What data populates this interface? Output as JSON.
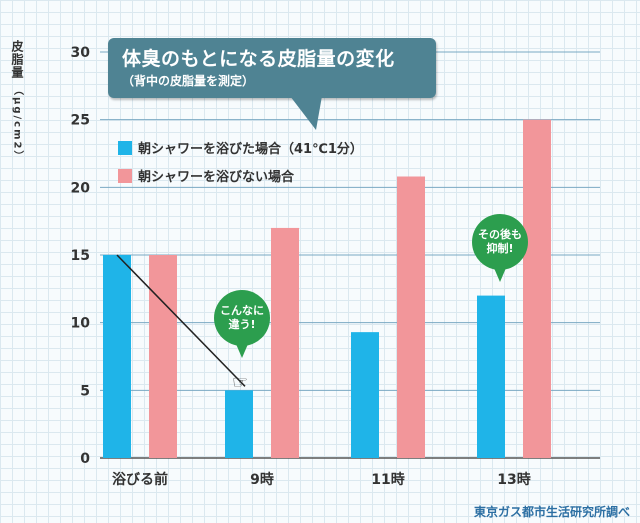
{
  "title": {
    "main": "体臭のもとになる皮脂量の変化",
    "sub": "（背中の皮脂量を測定）"
  },
  "y_axis": {
    "label": "皮脂量",
    "unit": "（μg/cm2）"
  },
  "annotations": {
    "bubble1_line1": "こんなに",
    "bubble1_line2": "違う!",
    "bubble2_line1": "その後も",
    "bubble2_line2": "抑制!"
  },
  "source": "東京ガス都市生活研究所調べ",
  "colors": {
    "shower": "#1fb4e8",
    "no_shower": "#f2969a",
    "title_box": "#4f8393",
    "bubble": "#2c9e4e"
  },
  "chart_data": {
    "type": "bar",
    "categories": [
      "浴びる前",
      "9時",
      "11時",
      "13時"
    ],
    "series": [
      {
        "name": "朝シャワーを浴びた場合（41℃1分）",
        "values": [
          15,
          5,
          9.3,
          12
        ]
      },
      {
        "name": "朝シャワーを浴びない場合",
        "values": [
          15,
          17,
          20.8,
          25
        ]
      }
    ],
    "ylim": [
      0,
      30
    ],
    "yticks": [
      0,
      5,
      10,
      15,
      20,
      25,
      30
    ],
    "grid": true,
    "legend": "top-left"
  }
}
